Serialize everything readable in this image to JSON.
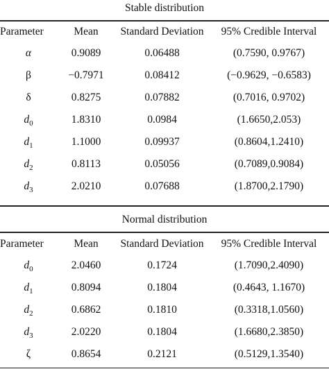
{
  "sections": [
    {
      "caption": "Stable distribution",
      "headers": [
        "Parameter",
        "Mean",
        "Standard Deviation",
        "95% Credible Interval"
      ],
      "rows": [
        {
          "param": "α",
          "sub": "",
          "italic": true,
          "mean": "0.9089",
          "sd": "0.06488",
          "ci": "(0.7590, 0.9767)"
        },
        {
          "param": "β",
          "sub": "",
          "italic": false,
          "mean": "−0.7971",
          "sd": "0.08412",
          "ci": "(−0.9629, −0.6583)"
        },
        {
          "param": "δ",
          "sub": "",
          "italic": false,
          "mean": "0.8275",
          "sd": "0.07882",
          "ci": "(0.7016, 0.9702)"
        },
        {
          "param": "d",
          "sub": "0",
          "italic": true,
          "mean": "1.8310",
          "sd": "0.0984",
          "ci": "(1.6650,2.053)"
        },
        {
          "param": "d",
          "sub": "1",
          "italic": true,
          "mean": "1.1000",
          "sd": "0.09937",
          "ci": "(0.8604,1.2410)"
        },
        {
          "param": "d",
          "sub": "2",
          "italic": true,
          "mean": "0.8113",
          "sd": "0.05056",
          "ci": "(0.7089,0.9084)"
        },
        {
          "param": "d",
          "sub": "3",
          "italic": true,
          "mean": "2.0210",
          "sd": "0.07688",
          "ci": "(1.8700,2.1790)"
        }
      ]
    },
    {
      "caption": "Normal distribution",
      "headers": [
        "Parameter",
        "Mean",
        "Standard Deviation",
        "95% Credible Interval"
      ],
      "rows": [
        {
          "param": "d",
          "sub": "0",
          "italic": true,
          "mean": "2.0460",
          "sd": "0.1724",
          "ci": "(1.7090,2.4090)"
        },
        {
          "param": "d",
          "sub": "1",
          "italic": true,
          "mean": "0.8094",
          "sd": "0.1804",
          "ci": "(0.4643, 1.1670)"
        },
        {
          "param": "d",
          "sub": "2",
          "italic": true,
          "mean": "0.6862",
          "sd": "0.1810",
          "ci": "(0.3318,1.0560)"
        },
        {
          "param": "d",
          "sub": "3",
          "italic": true,
          "mean": "2.0220",
          "sd": "0.1804",
          "ci": "(1.6680,2.3850)"
        },
        {
          "param": "ζ",
          "sub": "",
          "italic": false,
          "mean": "0.8654",
          "sd": "0.2121",
          "ci": "(0.5129,1.3540)"
        }
      ]
    }
  ]
}
